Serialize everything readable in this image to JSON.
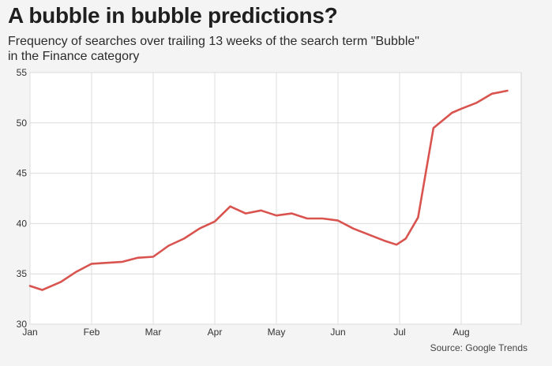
{
  "chart_data": {
    "type": "line",
    "title": "A bubble in bubble predictions?",
    "subtitle_lines": [
      "Frequency of searches over trailing 13 weeks of the search term \"Bubble\"",
      "in the Finance category"
    ],
    "source": "Source: Google Trends",
    "xlabel": "",
    "ylabel": "",
    "ylim": [
      30,
      55
    ],
    "yticks": [
      30,
      35,
      40,
      45,
      50,
      55
    ],
    "xticks": [
      "Jan",
      "Feb",
      "Mar",
      "Apr",
      "May",
      "Jun",
      "Jul",
      "Aug"
    ],
    "grid": true,
    "colors": {
      "line": "#d9534f",
      "grid": "#dcdcdc",
      "background": "#f4f4f4",
      "plot_bg": "#ffffff"
    },
    "series": [
      {
        "x_month_index": [
          0,
          0.2,
          0.5,
          0.75,
          1.0,
          1.25,
          1.5,
          1.75,
          2.0,
          2.25,
          2.5,
          2.75,
          3.0,
          3.25,
          3.5,
          3.75,
          4.0,
          4.25,
          4.5,
          4.75,
          5.0,
          5.25,
          5.5,
          5.75,
          5.95,
          6.1,
          6.3,
          6.55,
          6.85,
          7.0,
          7.25,
          7.5,
          7.75
        ],
        "values": [
          33.8,
          33.4,
          34.2,
          35.2,
          36.0,
          36.1,
          36.2,
          36.6,
          36.7,
          37.8,
          38.5,
          39.5,
          40.2,
          41.7,
          41.0,
          41.3,
          40.8,
          41.0,
          40.5,
          40.5,
          40.3,
          39.5,
          38.9,
          38.3,
          37.9,
          38.5,
          40.6,
          49.5,
          51.0,
          51.4,
          52.0,
          52.9,
          53.2
        ]
      }
    ]
  }
}
